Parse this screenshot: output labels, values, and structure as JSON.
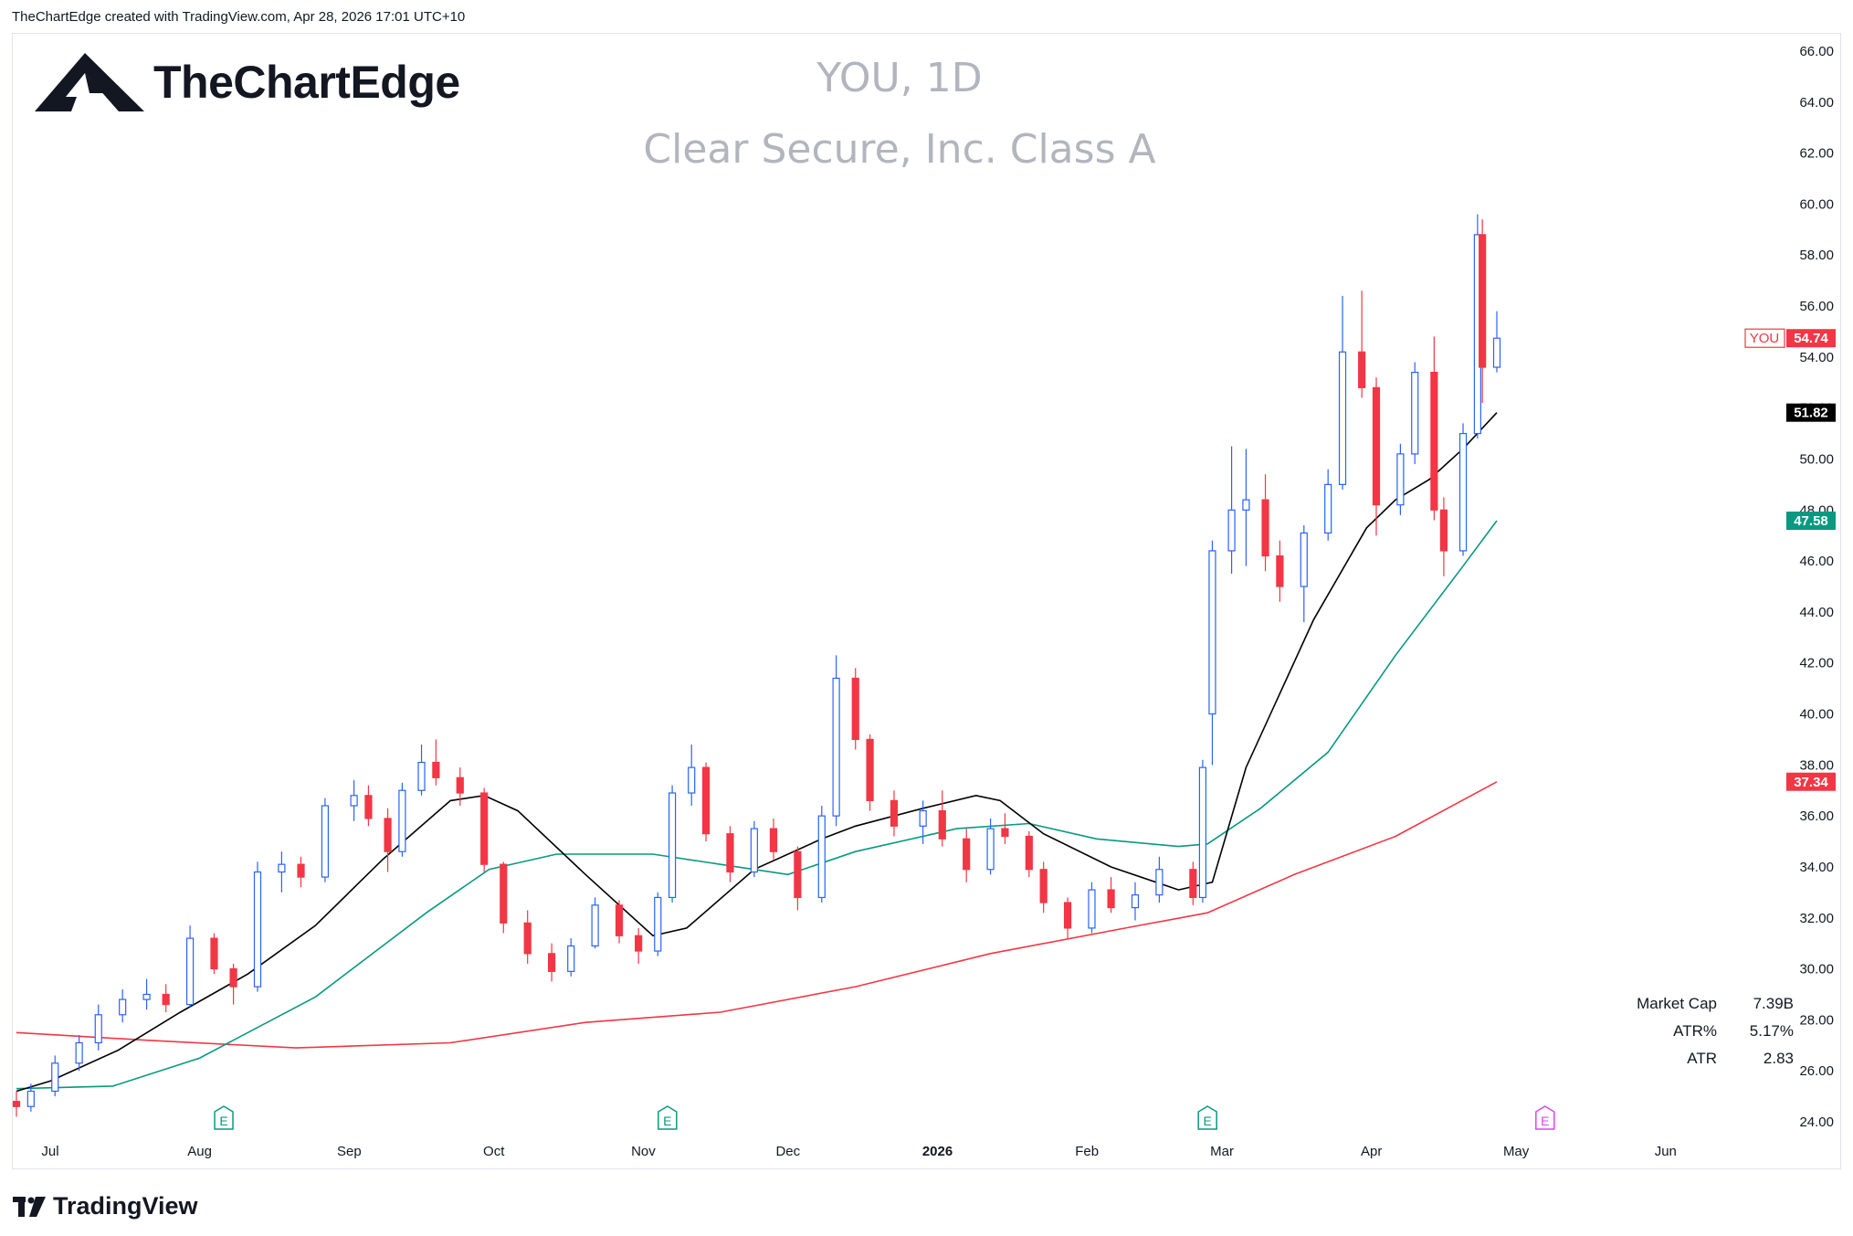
{
  "header": {
    "attribution": "TheChartEdge created with TradingView.com, Apr 28, 2026 17:01 UTC+10"
  },
  "brand": {
    "name": "TheChartEdge"
  },
  "footer": {
    "brand": "TradingView"
  },
  "watermark": {
    "symbol_line": "YOU, 1D",
    "name_line": "Clear Secure, Inc. Class A"
  },
  "stats": [
    {
      "label": "Market Cap",
      "value": "7.39B"
    },
    {
      "label": "ATR%",
      "value": "5.17%"
    },
    {
      "label": "ATR",
      "value": "2.83"
    }
  ],
  "colors": {
    "up": "#2962ff",
    "down": "#f23645",
    "ma_short": "#000000",
    "ma_mid": "#089981",
    "ma_long": "#f23645",
    "earnings_past": "#089981",
    "earnings_next": "#e040fb"
  },
  "chart_data": {
    "type": "candlestick",
    "symbol": "YOU",
    "interval": "1D",
    "ylim": [
      24,
      66
    ],
    "y_ticks": [
      "66.00",
      "64.00",
      "62.00",
      "60.00",
      "58.00",
      "56.00",
      "54.00",
      "52.00",
      "50.00",
      "48.00",
      "46.00",
      "44.00",
      "42.00",
      "40.00",
      "38.00",
      "36.00",
      "34.00",
      "32.00",
      "30.00",
      "28.00",
      "26.00",
      "24.00"
    ],
    "x_labels": [
      {
        "label": "Jul",
        "date": "2025-07-01"
      },
      {
        "label": "Aug",
        "date": "2025-08-01"
      },
      {
        "label": "Sep",
        "date": "2025-09-01"
      },
      {
        "label": "Oct",
        "date": "2025-10-01"
      },
      {
        "label": "Nov",
        "date": "2025-11-01"
      },
      {
        "label": "Dec",
        "date": "2025-12-01"
      },
      {
        "label": "2026",
        "date": "2026-01-01",
        "bold": true
      },
      {
        "label": "Feb",
        "date": "2026-02-01"
      },
      {
        "label": "Mar",
        "date": "2026-03-01"
      },
      {
        "label": "Apr",
        "date": "2026-04-01"
      },
      {
        "label": "May",
        "date": "2026-05-01"
      },
      {
        "label": "Jun",
        "date": "2026-06-01"
      }
    ],
    "price_tags": [
      {
        "label": "YOU",
        "value": "54.74",
        "price": 54.74,
        "kind": "last"
      },
      {
        "value": "51.82",
        "price": 51.82,
        "kind": "ma_short"
      },
      {
        "value": "47.58",
        "price": 47.58,
        "kind": "ma_mid"
      },
      {
        "value": "37.34",
        "price": 37.34,
        "kind": "ma_long"
      }
    ],
    "earnings": [
      {
        "date": "2025-08-06",
        "marker": "E",
        "status": "past"
      },
      {
        "date": "2025-11-06",
        "marker": "E",
        "status": "past"
      },
      {
        "date": "2026-02-26",
        "marker": "E",
        "status": "past"
      },
      {
        "date": "2026-05-07",
        "marker": "E",
        "status": "upcoming"
      }
    ],
    "candles": [
      [
        "2025-06-24",
        24.8,
        25.2,
        24.2,
        24.6
      ],
      [
        "2025-06-27",
        24.6,
        25.5,
        24.4,
        25.2
      ],
      [
        "2025-07-02",
        25.2,
        26.6,
        25.0,
        26.3
      ],
      [
        "2025-07-07",
        26.3,
        27.4,
        26.0,
        27.1
      ],
      [
        "2025-07-11",
        27.1,
        28.6,
        26.8,
        28.2
      ],
      [
        "2025-07-16",
        28.2,
        29.2,
        27.9,
        28.8
      ],
      [
        "2025-07-21",
        28.8,
        29.6,
        28.4,
        29.0
      ],
      [
        "2025-07-25",
        29.0,
        29.4,
        28.3,
        28.6
      ],
      [
        "2025-07-30",
        28.6,
        31.7,
        28.5,
        31.2
      ],
      [
        "2025-08-04",
        31.2,
        31.4,
        29.8,
        30.0
      ],
      [
        "2025-08-08",
        30.0,
        30.2,
        28.6,
        29.3
      ],
      [
        "2025-08-13",
        29.3,
        34.2,
        29.1,
        33.8
      ],
      [
        "2025-08-18",
        33.8,
        34.6,
        33.0,
        34.1
      ],
      [
        "2025-08-22",
        34.1,
        34.4,
        33.2,
        33.6
      ],
      [
        "2025-08-27",
        33.6,
        36.7,
        33.4,
        36.4
      ],
      [
        "2025-09-02",
        36.4,
        37.4,
        35.8,
        36.8
      ],
      [
        "2025-09-05",
        36.8,
        37.2,
        35.6,
        35.9
      ],
      [
        "2025-09-09",
        35.9,
        36.3,
        33.8,
        34.6
      ],
      [
        "2025-09-12",
        34.6,
        37.3,
        34.4,
        37.0
      ],
      [
        "2025-09-16",
        37.0,
        38.8,
        36.8,
        38.1
      ],
      [
        "2025-09-19",
        38.1,
        39.0,
        37.2,
        37.5
      ],
      [
        "2025-09-24",
        37.5,
        37.9,
        36.4,
        36.9
      ],
      [
        "2025-09-29",
        36.9,
        37.1,
        33.8,
        34.1
      ],
      [
        "2025-10-03",
        34.1,
        34.2,
        31.4,
        31.8
      ],
      [
        "2025-10-08",
        31.8,
        32.3,
        30.2,
        30.6
      ],
      [
        "2025-10-13",
        30.6,
        31.0,
        29.5,
        29.9
      ],
      [
        "2025-10-17",
        29.9,
        31.2,
        29.7,
        30.9
      ],
      [
        "2025-10-22",
        30.9,
        32.8,
        30.8,
        32.5
      ],
      [
        "2025-10-27",
        32.5,
        32.7,
        31.0,
        31.3
      ],
      [
        "2025-10-31",
        31.3,
        31.6,
        30.2,
        30.7
      ],
      [
        "2025-11-04",
        30.7,
        33.0,
        30.5,
        32.8
      ],
      [
        "2025-11-07",
        32.8,
        37.2,
        32.6,
        36.9
      ],
      [
        "2025-11-11",
        36.9,
        38.8,
        36.4,
        37.9
      ],
      [
        "2025-11-14",
        37.9,
        38.1,
        35.0,
        35.3
      ],
      [
        "2025-11-19",
        35.3,
        35.6,
        33.4,
        33.8
      ],
      [
        "2025-11-24",
        33.8,
        35.8,
        33.6,
        35.5
      ],
      [
        "2025-11-28",
        35.5,
        35.9,
        34.3,
        34.6
      ],
      [
        "2025-12-03",
        34.6,
        34.8,
        32.3,
        32.8
      ],
      [
        "2025-12-08",
        32.8,
        36.4,
        32.6,
        36.0
      ],
      [
        "2025-12-11",
        36.0,
        42.3,
        35.6,
        41.4
      ],
      [
        "2025-12-15",
        41.4,
        41.8,
        38.6,
        39.0
      ],
      [
        "2025-12-18",
        39.0,
        39.2,
        36.2,
        36.6
      ],
      [
        "2025-12-23",
        36.6,
        37.0,
        35.2,
        35.6
      ],
      [
        "2025-12-29",
        35.6,
        36.6,
        34.9,
        36.2
      ],
      [
        "2026-01-02",
        36.2,
        37.0,
        34.8,
        35.1
      ],
      [
        "2026-01-07",
        35.1,
        35.5,
        33.4,
        33.9
      ],
      [
        "2026-01-12",
        33.9,
        35.9,
        33.7,
        35.5
      ],
      [
        "2026-01-15",
        35.5,
        36.1,
        34.9,
        35.2
      ],
      [
        "2026-01-20",
        35.2,
        35.4,
        33.6,
        33.9
      ],
      [
        "2026-01-23",
        33.9,
        34.2,
        32.2,
        32.6
      ],
      [
        "2026-01-28",
        32.6,
        32.8,
        31.2,
        31.6
      ],
      [
        "2026-02-02",
        31.6,
        33.4,
        31.4,
        33.1
      ],
      [
        "2026-02-06",
        33.1,
        33.6,
        32.2,
        32.4
      ],
      [
        "2026-02-11",
        32.4,
        33.4,
        31.9,
        32.9
      ],
      [
        "2026-02-16",
        32.9,
        34.4,
        32.6,
        33.9
      ],
      [
        "2026-02-23",
        33.9,
        34.2,
        32.5,
        32.8
      ],
      [
        "2026-02-25",
        32.8,
        38.2,
        32.6,
        37.9
      ],
      [
        "2026-02-27",
        40.0,
        46.8,
        38.0,
        46.4
      ],
      [
        "2026-03-03",
        46.4,
        50.5,
        45.5,
        48.0
      ],
      [
        "2026-03-06",
        48.0,
        50.4,
        45.8,
        48.4
      ],
      [
        "2026-03-10",
        48.4,
        49.4,
        45.6,
        46.2
      ],
      [
        "2026-03-13",
        46.2,
        46.8,
        44.4,
        45.0
      ],
      [
        "2026-03-18",
        45.0,
        47.4,
        43.6,
        47.1
      ],
      [
        "2026-03-23",
        47.1,
        49.6,
        46.8,
        49.0
      ],
      [
        "2026-03-26",
        49.0,
        56.4,
        48.8,
        54.2
      ],
      [
        "2026-03-30",
        54.2,
        56.6,
        52.4,
        52.8
      ],
      [
        "2026-04-02",
        52.8,
        53.2,
        47.0,
        48.2
      ],
      [
        "2026-04-07",
        48.2,
        50.6,
        47.8,
        50.2
      ],
      [
        "2026-04-10",
        50.2,
        53.8,
        49.8,
        53.4
      ],
      [
        "2026-04-14",
        53.4,
        54.8,
        47.6,
        48.0
      ],
      [
        "2026-04-16",
        48.0,
        48.5,
        45.4,
        46.4
      ],
      [
        "2026-04-20",
        46.4,
        51.4,
        46.2,
        51.0
      ],
      [
        "2026-04-23",
        51.0,
        59.6,
        50.8,
        58.8
      ],
      [
        "2026-04-24",
        58.8,
        59.4,
        52.2,
        53.6
      ],
      [
        "2026-04-27",
        53.6,
        55.8,
        53.4,
        54.74
      ]
    ],
    "ma_short": [
      [
        "2025-06-24",
        25.2
      ],
      [
        "2025-07-01",
        25.6
      ],
      [
        "2025-07-15",
        26.8
      ],
      [
        "2025-07-28",
        28.3
      ],
      [
        "2025-08-11",
        29.8
      ],
      [
        "2025-08-25",
        31.7
      ],
      [
        "2025-09-08",
        34.3
      ],
      [
        "2025-09-22",
        36.6
      ],
      [
        "2025-09-29",
        36.8
      ],
      [
        "2025-10-06",
        36.2
      ],
      [
        "2025-10-20",
        33.7
      ],
      [
        "2025-11-03",
        31.3
      ],
      [
        "2025-11-10",
        31.6
      ],
      [
        "2025-11-24",
        33.9
      ],
      [
        "2025-12-08",
        35.1
      ],
      [
        "2025-12-15",
        35.6
      ],
      [
        "2025-12-29",
        36.3
      ],
      [
        "2026-01-09",
        36.8
      ],
      [
        "2026-01-14",
        36.6
      ],
      [
        "2026-01-23",
        35.3
      ],
      [
        "2026-02-06",
        34.0
      ],
      [
        "2026-02-20",
        33.1
      ],
      [
        "2026-02-27",
        33.4
      ],
      [
        "2026-03-06",
        37.9
      ],
      [
        "2026-03-20",
        43.7
      ],
      [
        "2026-03-31",
        47.3
      ],
      [
        "2026-04-06",
        48.4
      ],
      [
        "2026-04-13",
        49.2
      ],
      [
        "2026-04-20",
        50.4
      ],
      [
        "2026-04-27",
        51.82
      ]
    ],
    "ma_mid": [
      [
        "2025-06-24",
        25.3
      ],
      [
        "2025-07-14",
        25.4
      ],
      [
        "2025-08-01",
        26.5
      ],
      [
        "2025-08-25",
        28.9
      ],
      [
        "2025-09-17",
        32.2
      ],
      [
        "2025-09-30",
        33.9
      ],
      [
        "2025-10-14",
        34.5
      ],
      [
        "2025-11-03",
        34.5
      ],
      [
        "2025-11-17",
        34.1
      ],
      [
        "2025-12-01",
        33.7
      ],
      [
        "2025-12-15",
        34.6
      ],
      [
        "2026-01-05",
        35.5
      ],
      [
        "2026-01-20",
        35.7
      ],
      [
        "2026-02-03",
        35.1
      ],
      [
        "2026-02-20",
        34.8
      ],
      [
        "2026-02-26",
        34.9
      ],
      [
        "2026-03-09",
        36.3
      ],
      [
        "2026-03-23",
        38.5
      ],
      [
        "2026-04-06",
        42.3
      ],
      [
        "2026-04-20",
        45.8
      ],
      [
        "2026-04-27",
        47.58
      ]
    ],
    "ma_long": [
      [
        "2025-06-24",
        27.5
      ],
      [
        "2025-07-21",
        27.2
      ],
      [
        "2025-08-21",
        26.9
      ],
      [
        "2025-09-22",
        27.1
      ],
      [
        "2025-10-20",
        27.9
      ],
      [
        "2025-11-17",
        28.3
      ],
      [
        "2025-12-15",
        29.3
      ],
      [
        "2026-01-12",
        30.6
      ],
      [
        "2026-02-09",
        31.6
      ],
      [
        "2026-02-26",
        32.2
      ],
      [
        "2026-03-16",
        33.7
      ],
      [
        "2026-04-06",
        35.2
      ],
      [
        "2026-04-27",
        37.34
      ]
    ]
  }
}
